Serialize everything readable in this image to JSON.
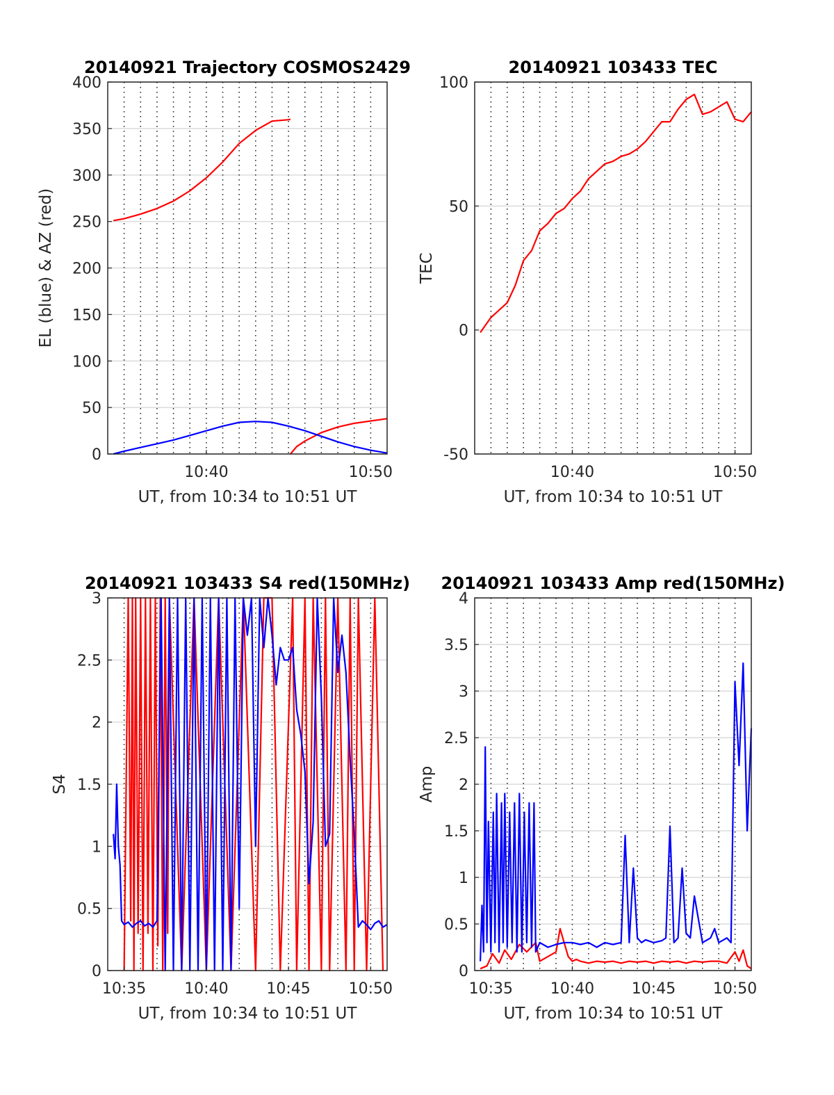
{
  "chart_data": [
    {
      "type": "line",
      "title": "20140921 Trajectory COSMOS2429",
      "xlabel": "UT, from 10:34 to 10:51 UT",
      "ylabel": "EL (blue) & AZ (red)",
      "xlim": [
        10.5667,
        10.85
      ],
      "ylim": [
        0,
        400
      ],
      "yticks": [
        0,
        50,
        100,
        150,
        200,
        250,
        300,
        350,
        400
      ],
      "xtick_values": [
        10.6667,
        10.8333
      ],
      "xtick_labels": [
        "10:40",
        "10:50"
      ],
      "grid": "horizontal solid, vertical dotted each minute",
      "colors": {
        "EL": "#0000ff",
        "AZ": "#ff0000"
      },
      "series": [
        {
          "color": "#ff0000",
          "x": [
            10.5725,
            10.5833,
            10.6,
            10.6167,
            10.6333,
            10.65,
            10.6667,
            10.6833,
            10.7,
            10.7167,
            10.7333,
            10.75,
            10.752
          ],
          "y": [
            251,
            253,
            258,
            264,
            272,
            283,
            297,
            314,
            334,
            348,
            358,
            359.5,
            360
          ]
        },
        {
          "color": "#ff0000",
          "x": [
            10.752,
            10.7583,
            10.7667,
            10.7833,
            10.8,
            10.8167,
            10.85
          ],
          "y": [
            0,
            8,
            14,
            23,
            29,
            33,
            38
          ]
        },
        {
          "color": "#0000ff",
          "x": [
            10.5725,
            10.5833,
            10.6,
            10.6167,
            10.6333,
            10.65,
            10.6667,
            10.6833,
            10.7,
            10.7167,
            10.7333,
            10.75,
            10.7667,
            10.7833,
            10.8,
            10.8167,
            10.8333,
            10.85
          ],
          "y": [
            0,
            3,
            7,
            11,
            15,
            20,
            25,
            30,
            34,
            35,
            34,
            30,
            25,
            19,
            13,
            8,
            4,
            1
          ]
        }
      ]
    },
    {
      "type": "line",
      "title": "20140921 103433 TEC",
      "xlabel": "UT, from 10:34 to 10:51 UT",
      "ylabel": "TEC",
      "xlim": [
        10.5667,
        10.85
      ],
      "ylim": [
        -50,
        100
      ],
      "yticks": [
        -50,
        0,
        50,
        100
      ],
      "xtick_values": [
        10.6667,
        10.8333
      ],
      "xtick_labels": [
        "10:40",
        "10:50"
      ],
      "grid": "horizontal solid, vertical dotted each minute",
      "series": [
        {
          "color": "#ff0000",
          "x": [
            10.5725,
            10.5833,
            10.5917,
            10.6,
            10.6083,
            10.6167,
            10.625,
            10.6333,
            10.6417,
            10.65,
            10.6583,
            10.6667,
            10.675,
            10.6833,
            10.6917,
            10.7,
            10.7083,
            10.7167,
            10.725,
            10.7333,
            10.7417,
            10.75,
            10.7583,
            10.7667,
            10.775,
            10.7833,
            10.7917,
            10.8,
            10.8083,
            10.8167,
            10.825,
            10.8333,
            10.8417,
            10.85
          ],
          "y": [
            -1,
            5,
            8,
            11,
            18,
            28,
            32,
            40,
            43,
            47,
            49,
            53,
            56,
            61,
            64,
            67,
            68,
            70,
            71,
            73,
            76,
            80,
            84,
            84,
            89,
            93,
            95,
            87,
            88,
            90,
            92,
            85,
            84,
            88
          ]
        }
      ]
    },
    {
      "type": "line",
      "title": "20140921 103433 S4 red(150MHz)",
      "xlabel": "UT, from 10:34 to 10:51 UT",
      "ylabel": "S4",
      "xlim": [
        10.5667,
        10.85
      ],
      "ylim": [
        0,
        3
      ],
      "yticks": [
        0,
        0.5,
        1,
        1.5,
        2,
        2.5,
        3
      ],
      "ytick_labels": [
        "0",
        "0.5",
        "1",
        "1.5",
        "2",
        "2.5",
        "3"
      ],
      "xtick_values": [
        10.5833,
        10.6667,
        10.75,
        10.8333
      ],
      "xtick_labels": [
        "10:35",
        "10:40",
        "10:45",
        "10:50"
      ],
      "grid": "horizontal solid, vertical dotted each minute",
      "series": [
        {
          "color": "#ff0000",
          "x": [
            10.5833,
            10.5875,
            10.59,
            10.5917,
            10.5933,
            10.595,
            10.5975,
            10.6,
            10.6025,
            10.605,
            10.6075,
            10.61,
            10.6125,
            10.615,
            10.6175,
            10.62,
            10.6225,
            10.625,
            10.6275,
            10.6292,
            10.6417,
            10.6542,
            10.6667,
            10.6792,
            10.6917,
            10.7042,
            10.7167,
            10.725,
            10.7333,
            10.7417,
            10.7542,
            10.7583,
            10.7667,
            10.7708,
            10.775,
            10.7833,
            10.7875,
            10.7917,
            10.8,
            10.8083,
            10.8125,
            10.8167,
            10.8208,
            10.8292,
            10.8375,
            10.8458
          ],
          "y": [
            0,
            3,
            0.4,
            3,
            0,
            3,
            0.3,
            3,
            0,
            3,
            0.3,
            3,
            0,
            3,
            0.2,
            3,
            0,
            3,
            0.3,
            3,
            0,
            3,
            0,
            3,
            0,
            3,
            0,
            3,
            3,
            0,
            3,
            0,
            3,
            0,
            3,
            0,
            3,
            0,
            3,
            0,
            3,
            0,
            3,
            0,
            3,
            0
          ]
        },
        {
          "color": "#0000ff",
          "x": [
            10.5725,
            10.5742,
            10.5758,
            10.5775,
            10.5792,
            10.5808,
            10.5833,
            10.5875,
            10.5917,
            10.5958,
            10.6,
            10.6042,
            10.6083,
            10.6125,
            10.6167,
            10.6208,
            10.625,
            10.6292,
            10.6333,
            10.6375,
            10.6417,
            10.6458,
            10.65,
            10.6542,
            10.6583,
            10.6625,
            10.6667,
            10.6708,
            10.675,
            10.6792,
            10.6833,
            10.6875,
            10.6917,
            10.6958,
            10.7,
            10.7042,
            10.7083,
            10.7125,
            10.7167,
            10.7208,
            10.725,
            10.7292,
            10.7333,
            10.7375,
            10.7417,
            10.7458,
            10.75,
            10.7542,
            10.7583,
            10.7625,
            10.7667,
            10.7708,
            10.775,
            10.7792,
            10.7833,
            10.7875,
            10.7917,
            10.7958,
            10.8,
            10.8042,
            10.8083,
            10.8125,
            10.8167,
            10.8208,
            10.825,
            10.8292,
            10.8333,
            10.8375,
            10.8417,
            10.8458,
            10.85
          ],
          "y": [
            1.1,
            0.9,
            1.5,
            1.0,
            0.85,
            0.4,
            0.37,
            0.39,
            0.35,
            0.38,
            0.4,
            0.36,
            0.38,
            0.35,
            0.4,
            3,
            0,
            3,
            0,
            3,
            0,
            3,
            0,
            3,
            0,
            3,
            0,
            3,
            0,
            3,
            0,
            3,
            0,
            3,
            0.5,
            3,
            2.7,
            3,
            1.0,
            3,
            2.6,
            3,
            2.7,
            2.3,
            2.6,
            2.5,
            2.5,
            2.6,
            2.1,
            1.9,
            1.6,
            0.7,
            1.2,
            3,
            2.2,
            1.0,
            1.1,
            3,
            2.4,
            2.7,
            2.4,
            1.7,
            1.1,
            0.35,
            0.4,
            0.37,
            0.33,
            0.38,
            0.4,
            0.35,
            0.37
          ]
        }
      ]
    },
    {
      "type": "line",
      "title": "20140921 103433 Amp red(150MHz)",
      "xlabel": "UT, from 10:34 to 10:51 UT",
      "ylabel": "Amp",
      "xlim": [
        10.5667,
        10.85
      ],
      "ylim": [
        0,
        4
      ],
      "yticks": [
        0,
        0.5,
        1,
        1.5,
        2,
        2.5,
        3,
        3.5,
        4
      ],
      "ytick_labels": [
        "0",
        "0.5",
        "1",
        "1.5",
        "2",
        "2.5",
        "3",
        "3.5",
        "4"
      ],
      "xtick_values": [
        10.5833,
        10.6667,
        10.75,
        10.8333
      ],
      "xtick_labels": [
        "10:35",
        "10:40",
        "10:45",
        "10:50"
      ],
      "grid": "horizontal solid, vertical dotted each minute",
      "series": [
        {
          "color": "#ff0000",
          "x": [
            10.5725,
            10.5792,
            10.585,
            10.5917,
            10.5975,
            10.6042,
            10.6125,
            10.62,
            10.6292,
            10.6333,
            10.6417,
            10.65,
            10.6542,
            10.6583,
            10.6625,
            10.6667,
            10.6708,
            10.675,
            10.6833,
            10.6917,
            10.7,
            10.7083,
            10.7167,
            10.725,
            10.7333,
            10.7417,
            10.75,
            10.7583,
            10.7667,
            10.775,
            10.7833,
            10.7917,
            10.8,
            10.8083,
            10.8167,
            10.825,
            10.8333,
            10.8375,
            10.8417,
            10.8458,
            10.85
          ],
          "y": [
            0.02,
            0.05,
            0.18,
            0.08,
            0.22,
            0.12,
            0.28,
            0.2,
            0.3,
            0.1,
            0.15,
            0.2,
            0.45,
            0.3,
            0.15,
            0.1,
            0.12,
            0.1,
            0.08,
            0.1,
            0.09,
            0.1,
            0.08,
            0.1,
            0.09,
            0.1,
            0.08,
            0.1,
            0.09,
            0.1,
            0.08,
            0.1,
            0.09,
            0.1,
            0.1,
            0.08,
            0.2,
            0.1,
            0.22,
            0.05,
            0.02
          ]
        },
        {
          "color": "#0000ff",
          "x": [
            10.5725,
            10.5742,
            10.5758,
            10.5775,
            10.5792,
            10.5808,
            10.5833,
            10.5858,
            10.5875,
            10.5892,
            10.5917,
            10.5942,
            10.5958,
            10.5975,
            10.6,
            10.6025,
            10.605,
            10.6075,
            10.61,
            10.6125,
            10.615,
            10.6175,
            10.62,
            10.6225,
            10.625,
            10.6275,
            10.6292,
            10.6333,
            10.6417,
            10.65,
            10.6583,
            10.6667,
            10.675,
            10.6833,
            10.6917,
            10.7,
            10.7083,
            10.7167,
            10.7208,
            10.725,
            10.7292,
            10.7333,
            10.7375,
            10.7417,
            10.75,
            10.7583,
            10.7625,
            10.7667,
            10.7708,
            10.775,
            10.7792,
            10.7833,
            10.7875,
            10.7917,
            10.8,
            10.8083,
            10.8125,
            10.8167,
            10.825,
            10.8292,
            10.8333,
            10.8375,
            10.8417,
            10.8458,
            10.85
          ],
          "y": [
            0.1,
            0.7,
            0.2,
            2.4,
            0.3,
            1.6,
            0.2,
            1.7,
            0.3,
            1.9,
            0.2,
            1.8,
            0.3,
            1.9,
            0.25,
            1.7,
            0.3,
            1.8,
            0.2,
            1.9,
            0.2,
            1.7,
            0.3,
            1.8,
            0.25,
            1.8,
            0.2,
            0.3,
            0.25,
            0.28,
            0.3,
            0.3,
            0.28,
            0.3,
            0.25,
            0.3,
            0.28,
            0.3,
            1.45,
            0.3,
            1.1,
            0.35,
            0.3,
            0.33,
            0.3,
            0.32,
            0.35,
            1.55,
            0.3,
            0.35,
            1.1,
            0.4,
            0.35,
            0.8,
            0.3,
            0.35,
            0.45,
            0.3,
            0.35,
            0.3,
            3.1,
            2.2,
            3.3,
            1.5,
            2.6
          ]
        }
      ]
    }
  ]
}
